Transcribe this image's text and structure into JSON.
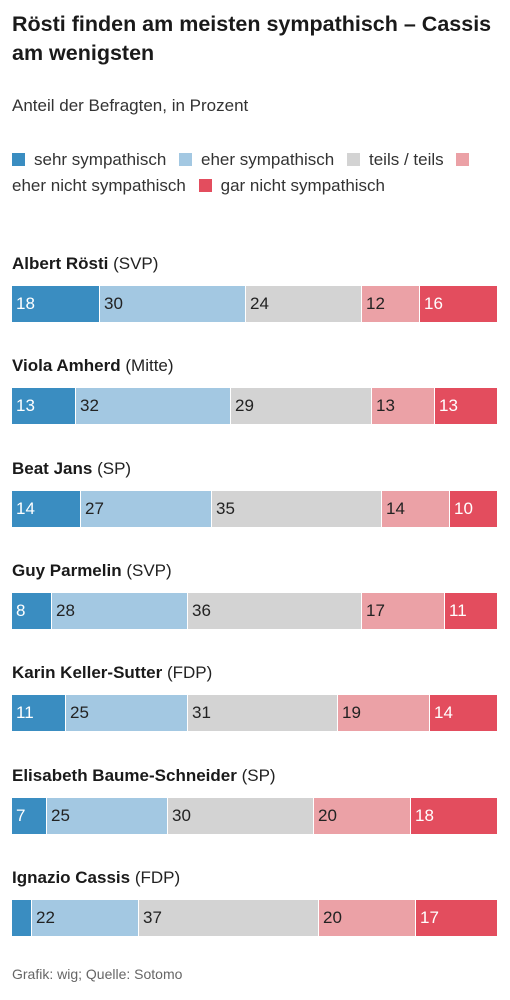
{
  "title": "Rösti finden am meisten sympathisch – Cassis am wenigsten",
  "subtitle": "Anteil der Befragten, in Prozent",
  "source": "Grafik: wig; Quelle: Sotomo",
  "chart_data": {
    "type": "bar",
    "orientation": "horizontal",
    "stacked": true,
    "title": "Rösti finden am meisten sympathisch – Cassis am wenigsten",
    "subtitle": "Anteil der Befragten, in Prozent",
    "legend_position": "top",
    "categories": [
      {
        "name": "Albert Rösti",
        "party": "(SVP)"
      },
      {
        "name": "Viola Amherd",
        "party": "(Mitte)"
      },
      {
        "name": "Beat Jans",
        "party": "(SP)"
      },
      {
        "name": "Guy Parmelin",
        "party": "(SVP)"
      },
      {
        "name": "Karin Keller-Sutter",
        "party": "(FDP)"
      },
      {
        "name": "Elisabeth Baume-Schneider",
        "party": "(SP)"
      },
      {
        "name": "Ignazio Cassis",
        "party": "(FDP)"
      }
    ],
    "series": [
      {
        "name": "sehr sympathisch",
        "color": "#3a8dc1",
        "label_color": "#ffffff",
        "values": [
          18,
          13,
          14,
          8,
          11,
          7,
          4
        ]
      },
      {
        "name": "eher sympathisch",
        "color": "#a3c8e2",
        "label_color": "#222222",
        "values": [
          30,
          32,
          27,
          28,
          25,
          25,
          22
        ]
      },
      {
        "name": "teils / teils",
        "color": "#d3d3d3",
        "label_color": "#222222",
        "values": [
          24,
          29,
          35,
          36,
          31,
          30,
          37
        ]
      },
      {
        "name": "eher nicht sympathisch",
        "color": "#eba1a6",
        "label_color": "#222222",
        "values": [
          12,
          13,
          14,
          17,
          19,
          20,
          20
        ]
      },
      {
        "name": "gar nicht sympathisch",
        "color": "#e34d5e",
        "label_color": "#ffffff",
        "values": [
          16,
          13,
          10,
          11,
          14,
          18,
          17
        ]
      }
    ],
    "value_labels": [
      [
        "18",
        "30",
        "24",
        "12",
        "16"
      ],
      [
        "13",
        "32",
        "29",
        "13",
        "13"
      ],
      [
        "14",
        "27",
        "35",
        "14",
        "10"
      ],
      [
        "8",
        "28",
        "36",
        "17",
        "11"
      ],
      [
        "11",
        "25",
        "31",
        "19",
        "14"
      ],
      [
        "7",
        "25",
        "30",
        "20",
        "18"
      ],
      [
        "",
        "22",
        "37",
        "20",
        "17"
      ]
    ],
    "xlim": [
      0,
      100
    ]
  }
}
